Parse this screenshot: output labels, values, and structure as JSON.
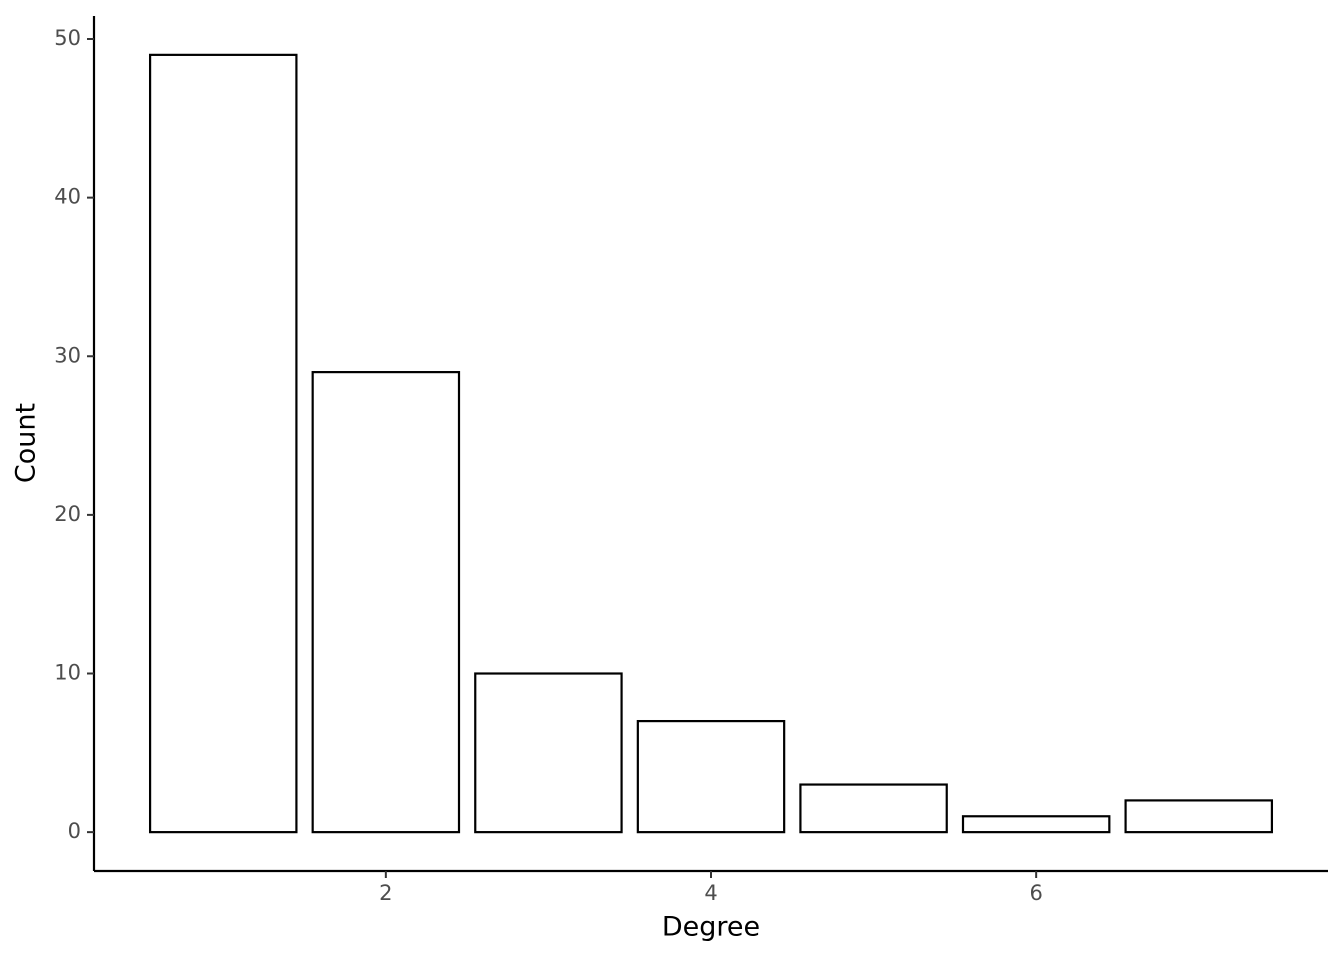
{
  "chart_data": {
    "type": "bar",
    "x_label": "Degree",
    "y_label": "Count",
    "x": [
      1,
      2,
      3,
      4,
      5,
      6,
      7
    ],
    "values": [
      49,
      29,
      10,
      7,
      3,
      1,
      2
    ],
    "xlim": [
      0.205,
      7.795
    ],
    "xticks": [
      2,
      4,
      6
    ],
    "ylim": [
      -2.45,
      51.45
    ],
    "yticks": [
      0,
      10,
      20,
      30,
      40,
      50
    ],
    "fill": "#ffffff",
    "edge_color": "#000000",
    "grid": false
  }
}
